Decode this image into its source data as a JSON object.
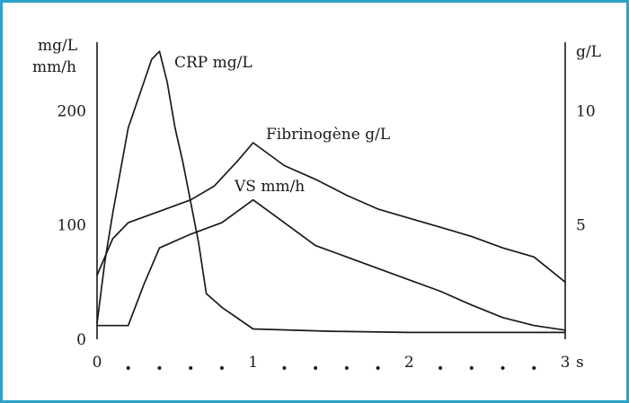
{
  "colors": {
    "frame": "#29a3c9",
    "ink": "#1a1a1a"
  },
  "chart_data": {
    "type": "line",
    "title": "",
    "xlabel": "s",
    "xlim": [
      0,
      3
    ],
    "x_ticks": [
      {
        "value": 0,
        "label": "0"
      },
      {
        "value": 1,
        "label": "1"
      },
      {
        "value": 2,
        "label": "2"
      },
      {
        "value": 3,
        "label": "3"
      }
    ],
    "x_minor_ticks": [
      0.2,
      0.4,
      0.6,
      0.8,
      1.2,
      1.4,
      1.6,
      1.8,
      2.2,
      2.4,
      2.6,
      2.8
    ],
    "left_axis": {
      "label_lines": [
        "mg/L",
        "mm/h"
      ],
      "ylim": [
        0,
        260
      ],
      "ticks": [
        {
          "value": 0,
          "label": "0"
        },
        {
          "value": 100,
          "label": "100"
        },
        {
          "value": 200,
          "label": "200"
        }
      ]
    },
    "right_axis": {
      "label": "g/L",
      "ylim": [
        0,
        13
      ],
      "ticks": [
        {
          "value": 5,
          "label": "5"
        },
        {
          "value": 10,
          "label": "10"
        }
      ]
    },
    "grid": false,
    "series": [
      {
        "name": "CRP mg/L",
        "axis": "left",
        "x": [
          0,
          0.05,
          0.1,
          0.2,
          0.3,
          0.35,
          0.4,
          0.45,
          0.5,
          0.55,
          0.6,
          0.65,
          0.7,
          0.8,
          1.0,
          1.5,
          2.0,
          2.5,
          3.0
        ],
        "y": [
          14,
          68,
          110,
          185,
          225,
          245,
          252,
          225,
          185,
          155,
          120,
          85,
          40,
          28,
          9,
          7,
          6,
          6,
          6
        ]
      },
      {
        "name": "Fibrinogène g/L",
        "axis": "right",
        "x": [
          0,
          0.1,
          0.2,
          0.4,
          0.6,
          0.75,
          0.9,
          1.0,
          1.2,
          1.4,
          1.6,
          1.8,
          2.0,
          2.2,
          2.4,
          2.6,
          2.8,
          3.0
        ],
        "y": [
          2.8,
          4.4,
          5.1,
          5.6,
          6.1,
          6.7,
          7.8,
          8.6,
          7.6,
          7.0,
          6.3,
          5.7,
          5.3,
          4.9,
          4.5,
          4.0,
          3.6,
          2.5
        ]
      },
      {
        "name": "VS mm/h",
        "axis": "left",
        "x": [
          0,
          0.2,
          0.3,
          0.4,
          0.6,
          0.8,
          1.0,
          1.2,
          1.4,
          1.6,
          1.8,
          2.0,
          2.2,
          2.4,
          2.6,
          2.8,
          3.0
        ],
        "y": [
          12,
          12,
          48,
          80,
          92,
          102,
          122,
          102,
          82,
          72,
          62,
          52,
          42,
          30,
          19,
          12,
          8
        ]
      }
    ],
    "annotations": [
      {
        "text": "CRP mg/L",
        "series": "CRP mg/L"
      },
      {
        "text": "Fibrinogène g/L",
        "series": "Fibrinogène g/L"
      },
      {
        "text": "VS mm/h",
        "series": "VS mm/h"
      }
    ]
  }
}
